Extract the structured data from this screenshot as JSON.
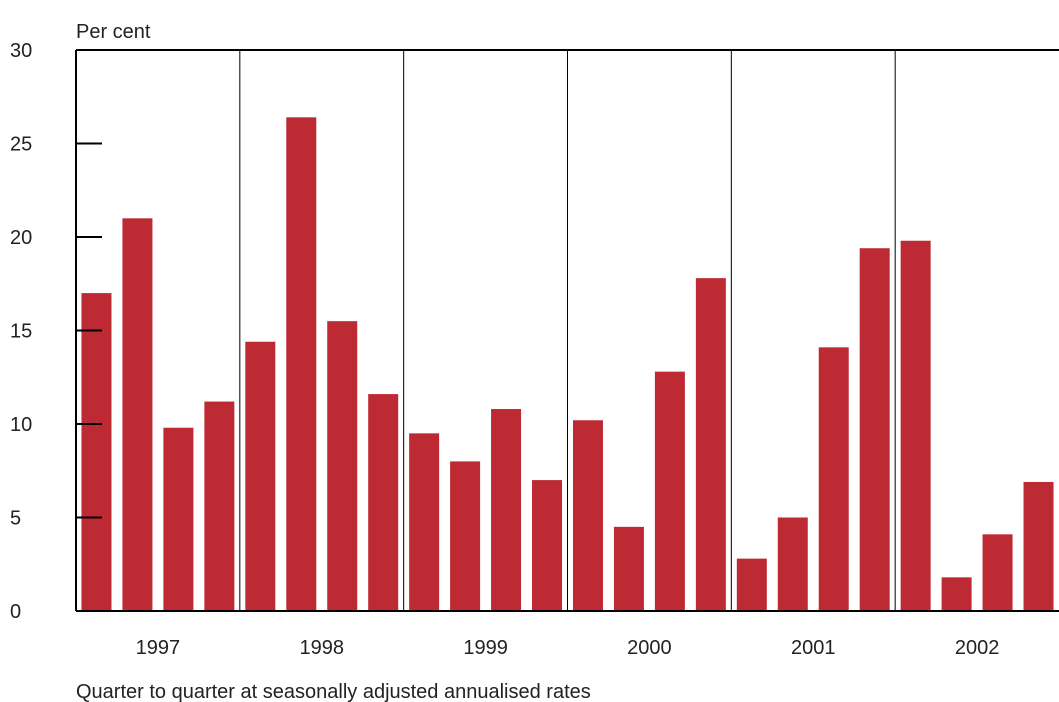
{
  "chart_data": {
    "type": "bar",
    "ylabel": "Per cent",
    "note": "Quarter to quarter at seasonally adjusted annualised rates",
    "ylim": [
      0,
      30
    ],
    "yticks": [
      "0",
      "5",
      "10",
      "15",
      "20",
      "25",
      "30"
    ],
    "bar_color": "#be2a33",
    "years": [
      "1997",
      "1998",
      "1999",
      "2000",
      "2001",
      "2002"
    ],
    "values": [
      17.0,
      21.0,
      9.8,
      11.2,
      14.4,
      26.4,
      15.5,
      11.6,
      9.5,
      8.0,
      10.8,
      7.0,
      10.2,
      4.5,
      12.8,
      17.8,
      2.8,
      5.0,
      14.1,
      19.4,
      19.8,
      1.8,
      4.1,
      6.9
    ]
  }
}
